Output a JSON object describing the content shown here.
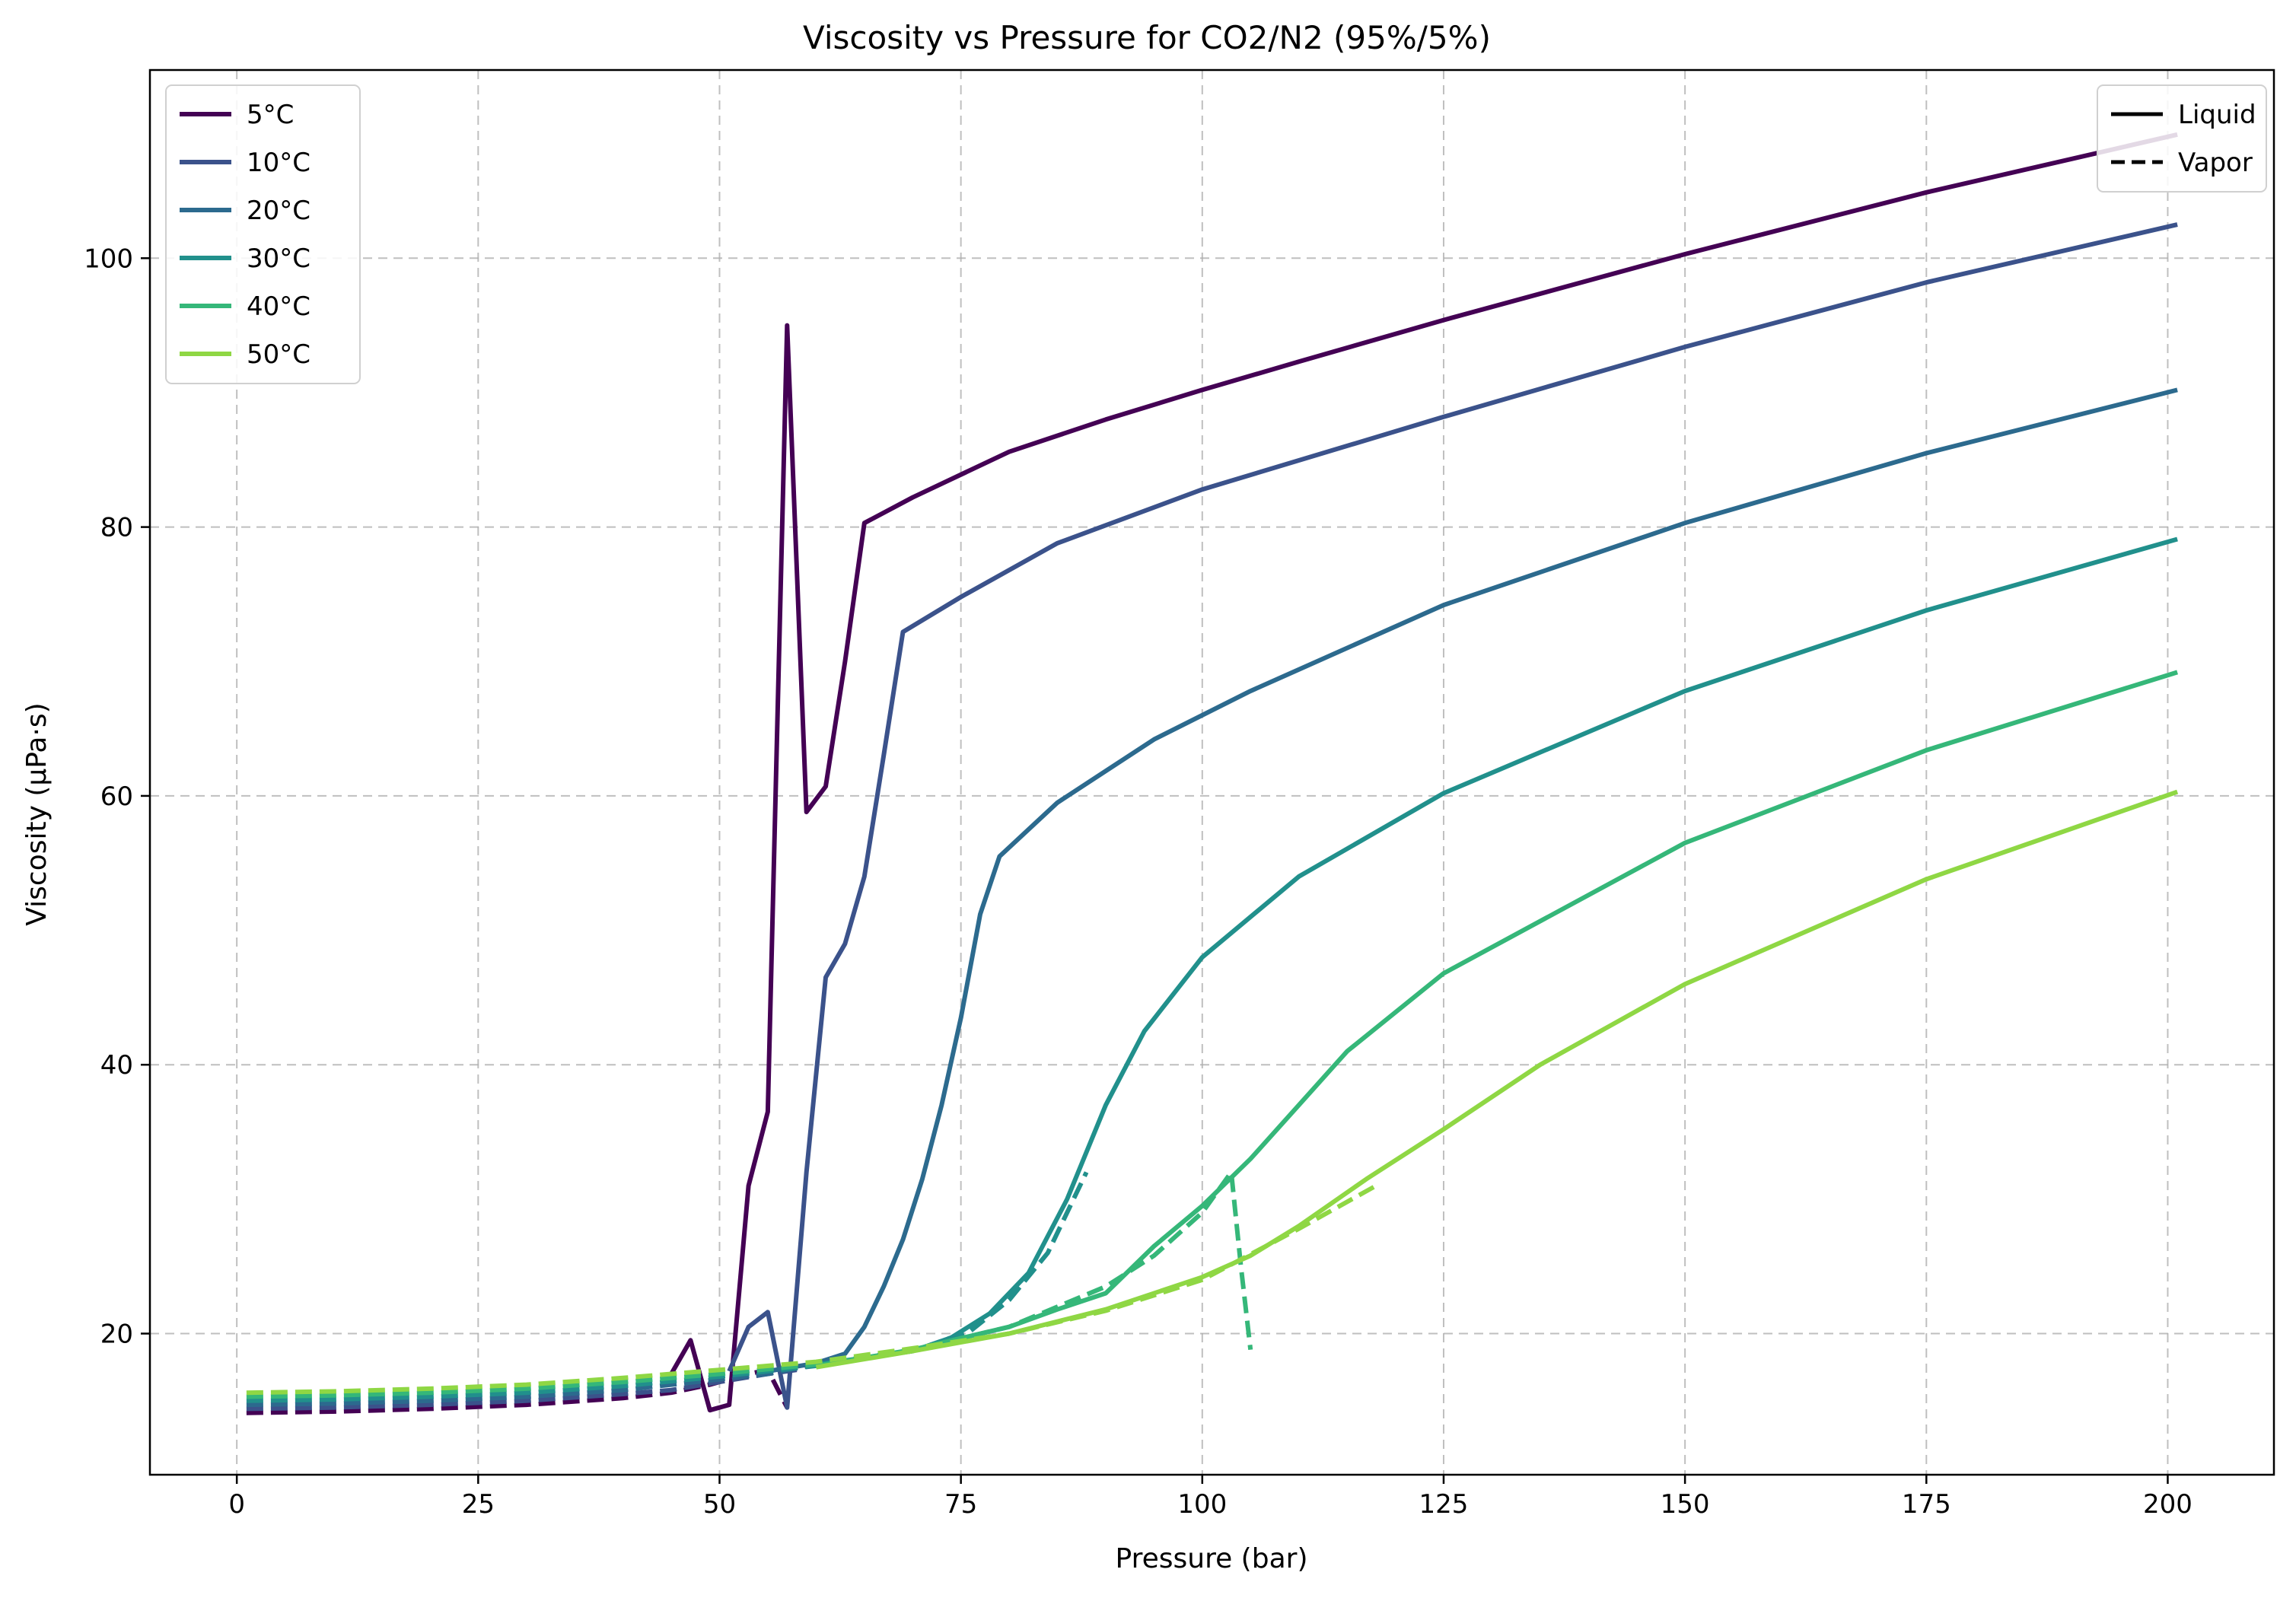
{
  "chart_data": {
    "type": "line",
    "title": "Viscosity vs Pressure for CO2/N2 (95%/5%)",
    "xlabel": "Pressure (bar)",
    "ylabel": "Viscosity (μPa·s)",
    "xlim": [
      -9,
      211
    ],
    "ylim": [
      9.5,
      114
    ],
    "xticks": [
      0,
      25,
      50,
      75,
      100,
      125,
      150,
      175,
      200
    ],
    "yticks": [
      20,
      40,
      60,
      80,
      100
    ],
    "grid": true,
    "legend_series_position": "top-left",
    "legend_style_position": "top-right",
    "style_legend": [
      {
        "label": "Liquid",
        "dash": "solid"
      },
      {
        "label": "Vapor",
        "dash": "dashed"
      }
    ],
    "series": [
      {
        "name": "5°C",
        "color": "#440154",
        "liquid": [
          [
            45,
            17
          ],
          [
            47,
            19.5
          ],
          [
            49,
            14.3
          ],
          [
            51,
            14.7
          ],
          [
            53,
            31
          ],
          [
            55,
            36.5
          ],
          [
            57,
            95
          ],
          [
            59,
            58.8
          ],
          [
            61,
            60.7
          ],
          [
            63,
            70
          ],
          [
            65,
            80.3
          ],
          [
            70,
            82.2
          ],
          [
            80,
            85.6
          ],
          [
            90,
            88
          ],
          [
            100,
            90.2
          ],
          [
            110,
            92.3
          ],
          [
            125,
            95.4
          ],
          [
            150,
            100.3
          ],
          [
            175,
            104.9
          ],
          [
            201,
            109.2
          ]
        ],
        "vapor": [
          [
            1,
            14.1
          ],
          [
            10,
            14.2
          ],
          [
            20,
            14.4
          ],
          [
            30,
            14.7
          ],
          [
            40,
            15.2
          ],
          [
            45,
            15.6
          ],
          [
            47,
            15.9
          ],
          [
            49,
            16.2
          ],
          [
            51,
            16.6
          ],
          [
            53,
            17
          ],
          [
            55,
            17.3
          ],
          [
            57,
            14.5
          ]
        ]
      },
      {
        "name": "10°C",
        "color": "#3b528b",
        "liquid": [
          [
            51,
            17.2
          ],
          [
            53,
            20.5
          ],
          [
            55,
            21.6
          ],
          [
            57,
            14.5
          ],
          [
            59,
            32
          ],
          [
            61,
            46.5
          ],
          [
            63,
            49
          ],
          [
            65,
            54
          ],
          [
            67,
            63
          ],
          [
            69,
            72.2
          ],
          [
            75,
            74.8
          ],
          [
            85,
            78.8
          ],
          [
            100,
            82.8
          ],
          [
            125,
            88.2
          ],
          [
            150,
            93.4
          ],
          [
            175,
            98.2
          ],
          [
            201,
            102.5
          ]
        ],
        "vapor": [
          [
            1,
            14.4
          ],
          [
            10,
            14.5
          ],
          [
            20,
            14.7
          ],
          [
            30,
            15
          ],
          [
            40,
            15.5
          ],
          [
            45,
            15.8
          ],
          [
            50,
            16.4
          ],
          [
            55,
            17
          ],
          [
            58,
            17.3
          ]
        ]
      },
      {
        "name": "20°C",
        "color": "#2c6a8e",
        "liquid": [
          [
            55,
            17.2
          ],
          [
            60,
            17.8
          ],
          [
            63,
            18.5
          ],
          [
            65,
            20.5
          ],
          [
            67,
            23.5
          ],
          [
            69,
            27
          ],
          [
            71,
            31.5
          ],
          [
            73,
            37
          ],
          [
            75,
            43.5
          ],
          [
            77,
            51.2
          ],
          [
            79,
            55.5
          ],
          [
            85,
            59.5
          ],
          [
            95,
            64.2
          ],
          [
            105,
            67.8
          ],
          [
            125,
            74.2
          ],
          [
            150,
            80.3
          ],
          [
            175,
            85.5
          ],
          [
            201,
            90.2
          ]
        ],
        "vapor": [
          [
            1,
            14.7
          ],
          [
            10,
            14.8
          ],
          [
            20,
            15
          ],
          [
            30,
            15.3
          ],
          [
            40,
            15.8
          ],
          [
            50,
            16.6
          ],
          [
            55,
            17
          ],
          [
            60,
            17.7
          ],
          [
            63,
            18.2
          ]
        ]
      },
      {
        "name": "30°C",
        "color": "#21908c",
        "liquid": [
          [
            60,
            17.7
          ],
          [
            65,
            18.2
          ],
          [
            70,
            18.7
          ],
          [
            74,
            19.7
          ],
          [
            78,
            21.5
          ],
          [
            82,
            24.5
          ],
          [
            86,
            30
          ],
          [
            90,
            37
          ],
          [
            94,
            42.5
          ],
          [
            100,
            48
          ],
          [
            110,
            54
          ],
          [
            125,
            60.2
          ],
          [
            150,
            67.8
          ],
          [
            175,
            73.8
          ],
          [
            201,
            79.1
          ]
        ],
        "vapor": [
          [
            1,
            15
          ],
          [
            10,
            15.1
          ],
          [
            20,
            15.3
          ],
          [
            30,
            15.6
          ],
          [
            40,
            16.1
          ],
          [
            50,
            16.8
          ],
          [
            60,
            17.6
          ],
          [
            70,
            18.7
          ],
          [
            76,
            20.2
          ],
          [
            80,
            22.5
          ],
          [
            84,
            26
          ],
          [
            88,
            32
          ]
        ]
      },
      {
        "name": "40°C",
        "color": "#35b779",
        "liquid": [
          [
            60,
            17.6
          ],
          [
            70,
            18.8
          ],
          [
            80,
            20.5
          ],
          [
            85,
            21.8
          ],
          [
            90,
            23
          ],
          [
            95,
            26.5
          ],
          [
            100,
            29.5
          ],
          [
            105,
            33
          ],
          [
            110,
            37
          ],
          [
            115,
            41
          ],
          [
            125,
            46.8
          ],
          [
            150,
            56.5
          ],
          [
            175,
            63.4
          ],
          [
            201,
            69.2
          ]
        ],
        "vapor": [
          [
            1,
            15.3
          ],
          [
            10,
            15.4
          ],
          [
            20,
            15.6
          ],
          [
            30,
            15.9
          ],
          [
            40,
            16.4
          ],
          [
            50,
            17
          ],
          [
            60,
            17.7
          ],
          [
            70,
            18.8
          ],
          [
            80,
            20.5
          ],
          [
            90,
            23.5
          ],
          [
            95,
            25.8
          ],
          [
            100,
            29
          ],
          [
            103,
            32
          ],
          [
            104,
            25
          ],
          [
            105,
            18.8
          ]
        ]
      },
      {
        "name": "50°C",
        "color": "#8fd744",
        "liquid": [
          [
            60,
            17.5
          ],
          [
            70,
            18.7
          ],
          [
            80,
            20
          ],
          [
            90,
            21.8
          ],
          [
            100,
            24.2
          ],
          [
            105,
            25.8
          ],
          [
            110,
            28
          ],
          [
            117,
            31.5
          ],
          [
            125,
            35.2
          ],
          [
            135,
            40
          ],
          [
            150,
            46
          ],
          [
            175,
            53.8
          ],
          [
            201,
            60.3
          ]
        ],
        "vapor": [
          [
            1,
            15.6
          ],
          [
            10,
            15.7
          ],
          [
            20,
            15.9
          ],
          [
            30,
            16.2
          ],
          [
            40,
            16.7
          ],
          [
            50,
            17.3
          ],
          [
            60,
            17.9
          ],
          [
            70,
            18.9
          ],
          [
            80,
            20
          ],
          [
            90,
            21.7
          ],
          [
            100,
            24
          ],
          [
            110,
            27.8
          ],
          [
            118,
            31
          ]
        ]
      }
    ]
  }
}
